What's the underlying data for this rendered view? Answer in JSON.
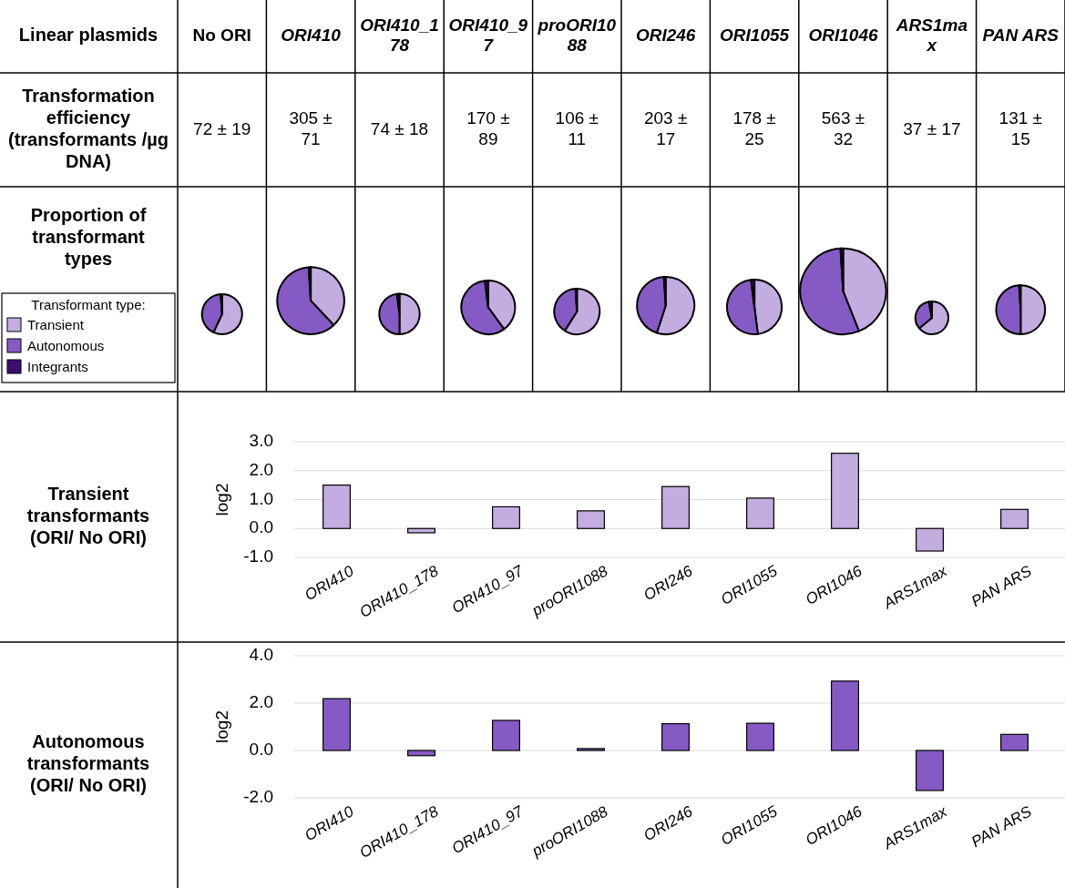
{
  "chart_data": [
    {
      "type": "other",
      "annotations": [
        "Linear plasmids",
        "Transformation efficiency (transformants /µg DNA)",
        "Proportion of transformant types"
      ]
    },
    {
      "type": "pie",
      "title": "No ORI",
      "annotations": [
        "72 ± 19"
      ],
      "categories": [
        "Transient",
        "Autonomous",
        "Integrants"
      ],
      "values": [
        57,
        42,
        1
      ],
      "colors": [
        "#c3acdf",
        "#865ac4",
        "#3b0f70"
      ],
      "legend": "left",
      "legend_title": "Transformant type:"
    },
    {
      "type": "pie",
      "title": "ORI410",
      "annotations": [
        "305 ± 71"
      ],
      "values": [
        38,
        61,
        1
      ],
      "colors": [
        "#c3acdf",
        "#865ac4",
        "#3b0f70"
      ]
    },
    {
      "type": "pie",
      "title": "ORI410_178",
      "annotations": [
        "74 ± 18"
      ],
      "values": [
        50,
        48,
        2
      ],
      "colors": [
        "#c3acdf",
        "#865ac4",
        "#3b0f70"
      ]
    },
    {
      "type": "pie",
      "title": "ORI410_97",
      "annotations": [
        "170 ± 89"
      ],
      "values": [
        40,
        58,
        2
      ],
      "colors": [
        "#c3acdf",
        "#865ac4",
        "#3b0f70"
      ]
    },
    {
      "type": "pie",
      "title": "proORI1088",
      "annotations": [
        "106 ± 11"
      ],
      "values": [
        59,
        40,
        1
      ],
      "colors": [
        "#c3acdf",
        "#865ac4",
        "#3b0f70"
      ]
    },
    {
      "type": "pie",
      "title": "ORI246",
      "annotations": [
        "203 ± 17"
      ],
      "values": [
        55,
        44,
        1
      ],
      "colors": [
        "#c3acdf",
        "#865ac4",
        "#3b0f70"
      ]
    },
    {
      "type": "pie",
      "title": "ORI1055",
      "annotations": [
        "178 ± 25"
      ],
      "values": [
        48,
        50,
        2
      ],
      "colors": [
        "#c3acdf",
        "#865ac4",
        "#3b0f70"
      ]
    },
    {
      "type": "pie",
      "title": "ORI1046",
      "annotations": [
        "563 ± 32"
      ],
      "values": [
        44,
        55,
        1
      ],
      "colors": [
        "#c3acdf",
        "#865ac4",
        "#3b0f70"
      ]
    },
    {
      "type": "pie",
      "title": "ARS1max",
      "annotations": [
        "37 ± 17"
      ],
      "values": [
        64,
        33,
        3
      ],
      "colors": [
        "#c3acdf",
        "#865ac4",
        "#3b0f70"
      ]
    },
    {
      "type": "pie",
      "title": "PAN ARS",
      "annotations": [
        "131 ± 15"
      ],
      "values": [
        50,
        49,
        1
      ],
      "colors": [
        "#c3acdf",
        "#865ac4",
        "#3b0f70"
      ]
    },
    {
      "type": "bar",
      "title": "Transient transformants (ORI/ No ORI)",
      "ylabel": "log2",
      "categories": [
        "ORI410",
        "ORI410_178",
        "ORI410_97",
        "proORI1088",
        "ORI246",
        "ORI1055",
        "ORI1046",
        "ARS1max",
        "PAN ARS"
      ],
      "values": [
        1.5,
        -0.15,
        0.75,
        0.61,
        1.45,
        1.05,
        2.6,
        -0.78,
        0.66
      ],
      "color": "#c3acdf",
      "ylim": [
        -1,
        3
      ],
      "yticks": [
        {
          "value": -1,
          "label": "-1.0"
        },
        {
          "value": 0,
          "label": "0.0"
        },
        {
          "value": 1,
          "label": "1.0"
        },
        {
          "value": 2,
          "label": "2.0"
        },
        {
          "value": 3,
          "label": "3.0"
        }
      ],
      "grid": "y"
    },
    {
      "type": "bar",
      "title": "Autonomous transformants (ORI/ No ORI)",
      "ylabel": "log2",
      "categories": [
        "ORI410",
        "ORI410_178",
        "ORI410_97",
        "proORI1088",
        "ORI246",
        "ORI1055",
        "ORI1046",
        "ARS1max",
        "PAN ARS"
      ],
      "values": [
        2.19,
        -0.22,
        1.27,
        0.08,
        1.13,
        1.15,
        2.93,
        -1.69,
        0.68
      ],
      "color": "#865ac4",
      "ylim": [
        -2,
        4
      ],
      "yticks": [
        {
          "value": -2,
          "label": "-2.0"
        },
        {
          "value": 0,
          "label": "0.0"
        },
        {
          "value": 2,
          "label": "2.0"
        },
        {
          "value": 4,
          "label": "4.0"
        }
      ],
      "grid": "y"
    }
  ]
}
